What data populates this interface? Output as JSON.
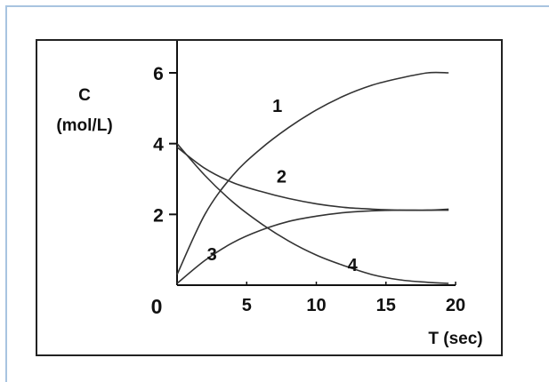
{
  "colors": {
    "outer_border": "#a8c4e0",
    "frame": "#222222",
    "axis": "#111111",
    "curve": "#333333",
    "text": "#111111"
  },
  "chart_data": {
    "type": "line",
    "ylabel_line1": "C",
    "ylabel_line2": "(mol/L)",
    "xlabel": "T (sec)",
    "xlim": [
      0,
      20
    ],
    "ylim": [
      0,
      6
    ],
    "origin_label": "0",
    "x_ticks": [
      {
        "value": 5,
        "label": "5"
      },
      {
        "value": 10,
        "label": "10"
      },
      {
        "value": 15,
        "label": "15"
      },
      {
        "value": 20,
        "label": "20"
      }
    ],
    "y_ticks": [
      {
        "value": 2,
        "label": "2"
      },
      {
        "value": 4,
        "label": "4"
      },
      {
        "value": 6,
        "label": "6"
      }
    ],
    "grid": false,
    "series": [
      {
        "label": "1",
        "label_at": [
          7.2,
          4.9
        ],
        "x": [
          0,
          2,
          4,
          6,
          8,
          10,
          12,
          14,
          16,
          18,
          19.5
        ],
        "y": [
          0.3,
          2.0,
          3.1,
          3.85,
          4.45,
          4.95,
          5.35,
          5.65,
          5.85,
          6.0,
          6.0
        ]
      },
      {
        "label": "2",
        "label_at": [
          7.5,
          2.9
        ],
        "x": [
          0,
          2,
          4,
          6,
          8,
          10,
          12,
          14,
          16,
          18,
          19.5
        ],
        "y": [
          3.9,
          3.3,
          2.9,
          2.65,
          2.45,
          2.3,
          2.2,
          2.15,
          2.12,
          2.12,
          2.12
        ]
      },
      {
        "label": "3",
        "label_at": [
          2.5,
          0.7
        ],
        "x": [
          0,
          2,
          4,
          6,
          8,
          10,
          12,
          14,
          16,
          18,
          19.5
        ],
        "y": [
          0.05,
          0.7,
          1.2,
          1.55,
          1.8,
          1.95,
          2.05,
          2.1,
          2.12,
          2.12,
          2.15
        ]
      },
      {
        "label": "4",
        "label_at": [
          12.6,
          0.4
        ],
        "x": [
          0,
          2,
          4,
          6,
          8,
          10,
          12,
          14,
          16,
          18,
          19.5
        ],
        "y": [
          4.0,
          3.1,
          2.35,
          1.75,
          1.25,
          0.85,
          0.55,
          0.3,
          0.15,
          0.08,
          0.05
        ]
      }
    ]
  }
}
